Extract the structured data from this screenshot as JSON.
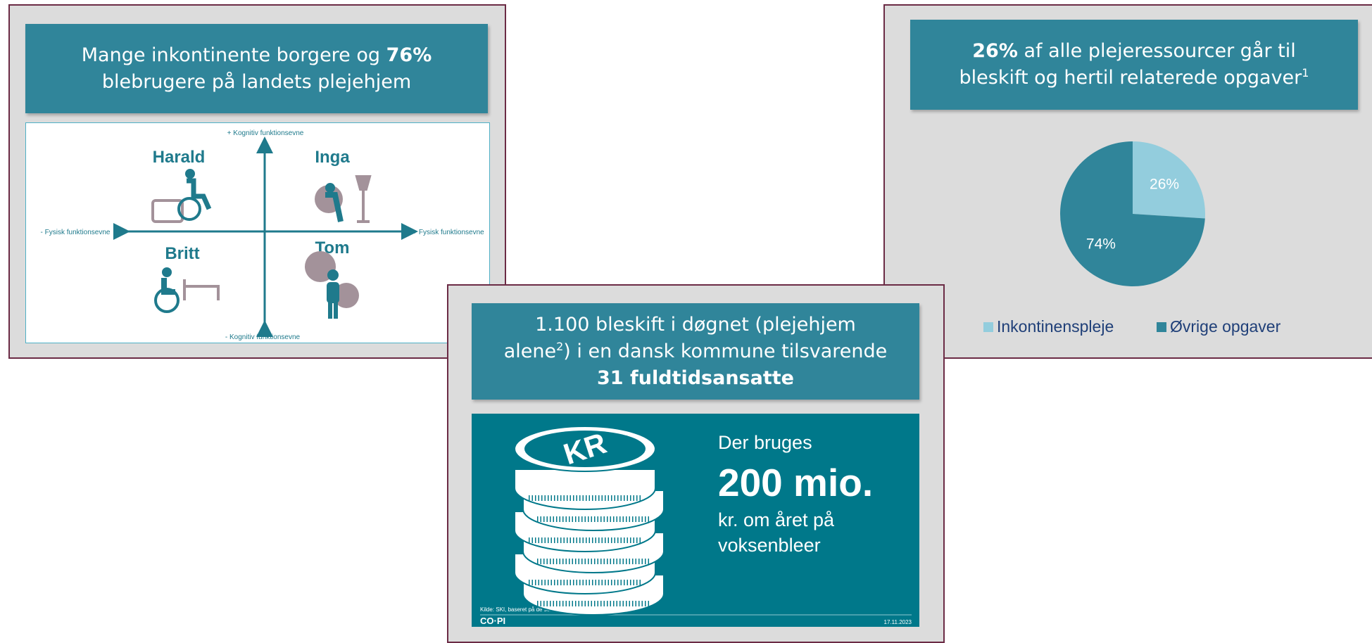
{
  "panel1": {
    "title_part1": "Mange inkontinente borgere og ",
    "title_bold": "76%",
    "title_part2": "blebrugere på landets plejehjem",
    "axis_top": "+ Kognitiv funktionsevne",
    "axis_bottom": "- Kognitiv funktionsevne",
    "axis_left": "- Fysisk funktionsevne",
    "axis_right": "+ Fysisk funktionsevne",
    "persons": [
      "Harald",
      "Inga",
      "Britt",
      "Tom"
    ]
  },
  "panel2": {
    "title_bold": "26%",
    "title_part1": " af alle plejeressourcer går til",
    "title_part2": "bleskift og hertil relaterede opgaver",
    "title_sup": "1"
  },
  "chart_data": {
    "type": "pie",
    "categories": [
      "Inkontinenspleje",
      "Øvrige opgaver"
    ],
    "series": [
      {
        "values": [
          26,
          74
        ],
        "value_labels": [
          "26%",
          "74%"
        ],
        "colors": [
          "#93cddd",
          "#30859a"
        ]
      }
    ]
  },
  "panel3": {
    "title_part1": "1.100 bleskift i døgnet (plejehjem",
    "title_part2": "alene",
    "title_sup": "2",
    "title_part3": ") i en dansk kommune tilsvarende",
    "title_bold": "31 fuldtidsansatte",
    "coin_text": "KR",
    "text1": "Der bruges",
    "big": "200 mio.",
    "text2": "kr. om året på",
    "text3": "voksenbleer",
    "source": "Kilde: SKI, baseret på de seneste års forbrug",
    "logo": "CO·PI",
    "date": "17.11.2023"
  }
}
